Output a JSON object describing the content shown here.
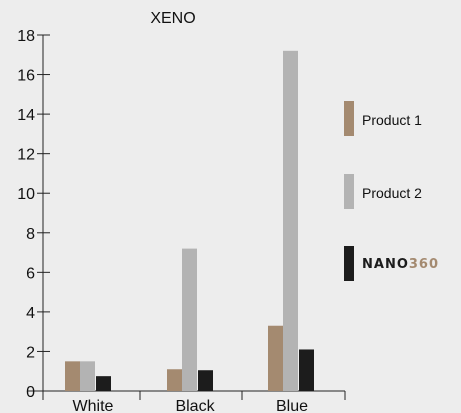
{
  "chart_data": {
    "type": "bar",
    "title": "XENO",
    "categories": [
      "White",
      "Black",
      "Blue"
    ],
    "series": [
      {
        "name": "Product 1",
        "values": [
          1.5,
          1.1,
          3.3
        ],
        "color": "#a48a70"
      },
      {
        "name": "Product 2",
        "values": [
          1.5,
          7.2,
          17.2
        ],
        "color": "#b3b3b3"
      },
      {
        "name": "NANO360",
        "values": [
          0.75,
          1.05,
          2.1
        ],
        "color": "#1c1c1c"
      }
    ],
    "ylim": [
      0,
      18
    ],
    "yticks": [
      0,
      2,
      4,
      6,
      8,
      10,
      12,
      14,
      16,
      18
    ],
    "legend_position": "right",
    "grid": false,
    "logo": {
      "part1": "NANO",
      "part2": "360",
      "color1": "#1c1c1c",
      "color2": "#a48a70"
    }
  }
}
